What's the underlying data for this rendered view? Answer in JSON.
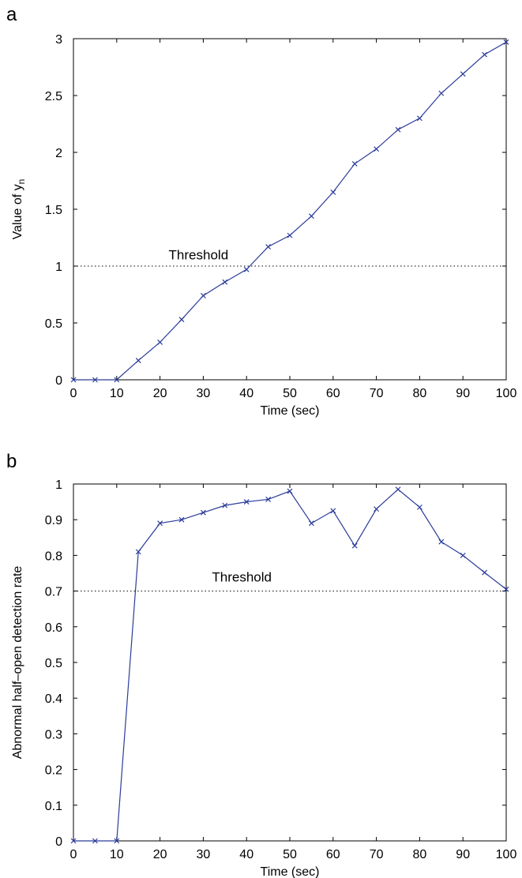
{
  "chart_data": [
    {
      "type": "line",
      "panel_label": "a",
      "xlabel": "Time (sec)",
      "ylabel": "Value of y",
      "ylabel_sub": "n",
      "xlim": [
        0,
        100
      ],
      "ylim": [
        0,
        3
      ],
      "xticks": [
        "0",
        "10",
        "20",
        "30",
        "40",
        "50",
        "60",
        "70",
        "80",
        "90",
        "100"
      ],
      "yticks": [
        "0",
        "0.5",
        "1",
        "1.5",
        "2",
        "2.5",
        "3"
      ],
      "threshold": {
        "value": 1,
        "label": "Threshold",
        "label_x": 22,
        "label_y": 1.1
      },
      "series_color": "#2b3c9a",
      "marker": "x",
      "x": [
        0,
        5,
        10,
        15,
        20,
        25,
        30,
        35,
        40,
        45,
        50,
        55,
        60,
        65,
        70,
        75,
        80,
        85,
        90,
        95,
        100
      ],
      "y": [
        0,
        0,
        0,
        0.17,
        0.33,
        0.53,
        0.74,
        0.86,
        0.97,
        1.17,
        1.27,
        1.44,
        1.65,
        1.9,
        2.03,
        2.2,
        2.3,
        2.52,
        2.69,
        2.86,
        2.97
      ]
    },
    {
      "type": "line",
      "panel_label": "b",
      "xlabel": "Time (sec)",
      "ylabel": "Abnormal half–open detection rate",
      "xlim": [
        0,
        100
      ],
      "ylim": [
        0,
        1
      ],
      "xticks": [
        "0",
        "10",
        "20",
        "30",
        "40",
        "50",
        "60",
        "70",
        "80",
        "90",
        "100"
      ],
      "yticks": [
        "0",
        "0.1",
        "0.2",
        "0.3",
        "0.4",
        "0.5",
        "0.6",
        "0.7",
        "0.8",
        "0.9",
        "1"
      ],
      "threshold": {
        "value": 0.7,
        "label": "Threshold",
        "label_x": 32,
        "label_y": 0.74
      },
      "series_color": "#2b3c9a",
      "marker": "x",
      "x": [
        0,
        5,
        10,
        15,
        20,
        25,
        30,
        35,
        40,
        45,
        50,
        55,
        60,
        65,
        70,
        75,
        80,
        85,
        90,
        95,
        100
      ],
      "y": [
        0,
        0,
        0,
        0.81,
        0.89,
        0.9,
        0.92,
        0.94,
        0.95,
        0.957,
        0.98,
        0.89,
        0.925,
        0.827,
        0.93,
        0.985,
        0.935,
        0.838,
        0.8,
        0.752,
        0.705
      ]
    }
  ]
}
